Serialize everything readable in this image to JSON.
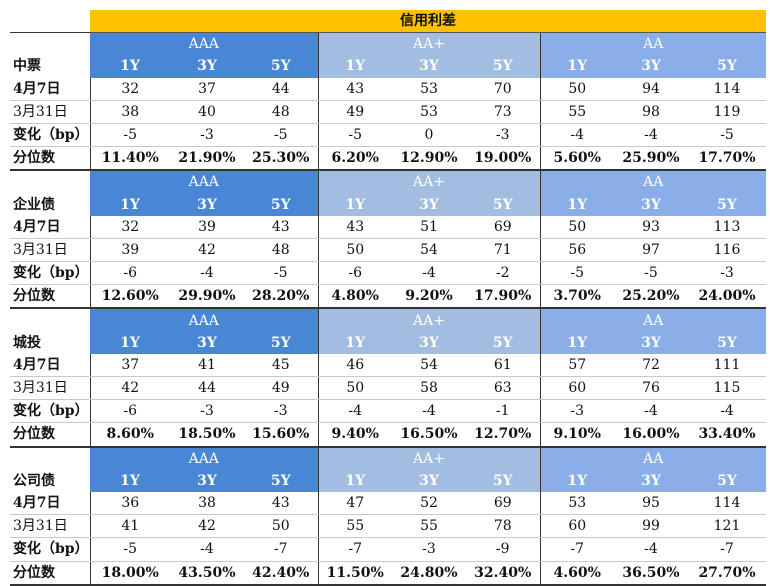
{
  "title": "信用利差",
  "rating_groups": [
    "AAA",
    "AA+",
    "AA"
  ],
  "tenors": [
    "1Y",
    "3Y",
    "5Y"
  ],
  "row_labels": {
    "date1": "4月7日",
    "date2": "3月31日",
    "change": "变化（bp）",
    "percentile": "分位数"
  },
  "blocks": [
    {
      "name": "中票",
      "date1": [
        "32",
        "37",
        "44",
        "43",
        "53",
        "70",
        "50",
        "94",
        "114"
      ],
      "date2": [
        "38",
        "40",
        "48",
        "49",
        "53",
        "73",
        "55",
        "98",
        "119"
      ],
      "change": [
        "-5",
        "-3",
        "-5",
        "-5",
        "0",
        "-3",
        "-4",
        "-4",
        "-5"
      ],
      "percentile": [
        "11.40%",
        "21.90%",
        "25.30%",
        "6.20%",
        "12.90%",
        "19.00%",
        "5.60%",
        "25.90%",
        "17.70%"
      ]
    },
    {
      "name": "企业债",
      "date1": [
        "32",
        "39",
        "43",
        "43",
        "51",
        "69",
        "50",
        "93",
        "113"
      ],
      "date2": [
        "39",
        "42",
        "48",
        "50",
        "54",
        "71",
        "56",
        "97",
        "116"
      ],
      "change": [
        "-6",
        "-4",
        "-5",
        "-6",
        "-4",
        "-2",
        "-5",
        "-5",
        "-3"
      ],
      "percentile": [
        "12.60%",
        "29.90%",
        "28.20%",
        "4.80%",
        "9.20%",
        "17.90%",
        "3.70%",
        "25.20%",
        "24.00%"
      ]
    },
    {
      "name": "城投",
      "date1": [
        "37",
        "41",
        "45",
        "46",
        "54",
        "61",
        "57",
        "72",
        "111"
      ],
      "date2": [
        "42",
        "44",
        "49",
        "50",
        "58",
        "63",
        "60",
        "76",
        "115"
      ],
      "change": [
        "-6",
        "-3",
        "-3",
        "-4",
        "-4",
        "-1",
        "-3",
        "-4",
        "-4"
      ],
      "percentile": [
        "8.60%",
        "18.50%",
        "15.60%",
        "9.40%",
        "16.50%",
        "12.70%",
        "9.10%",
        "16.00%",
        "33.40%"
      ]
    },
    {
      "name": "公司债",
      "date1": [
        "36",
        "38",
        "43",
        "47",
        "52",
        "69",
        "53",
        "95",
        "114"
      ],
      "date2": [
        "41",
        "42",
        "50",
        "55",
        "55",
        "78",
        "60",
        "99",
        "121"
      ],
      "change": [
        "-5",
        "-4",
        "-7",
        "-7",
        "-3",
        "-9",
        "-7",
        "-4",
        "-7"
      ],
      "percentile": [
        "18.00%",
        "43.50%",
        "42.40%",
        "11.50%",
        "24.80%",
        "32.40%",
        "4.60%",
        "36.50%",
        "27.70%"
      ]
    }
  ],
  "colors": {
    "header_bg": "#ffc000",
    "aaa_bg": "#4a86d6",
    "aa_plus_bg": "#a3bde0",
    "aa_bg": "#8aaee8"
  }
}
